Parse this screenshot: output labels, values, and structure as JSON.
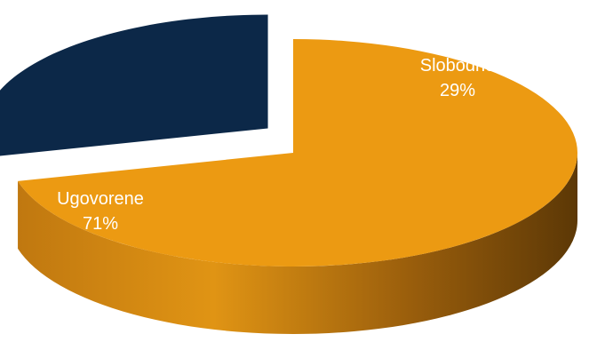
{
  "chart_data": {
    "type": "pie",
    "title": "",
    "slices": [
      {
        "label": "Ugovorene",
        "value": 71,
        "percent_label": "71%",
        "color": "#EC9A12"
      },
      {
        "label": "Slobodne",
        "value": 29,
        "percent_label": "29%",
        "color": "#0C2848"
      }
    ],
    "exploded": "Slobodne",
    "style": "3d",
    "legend": "none"
  }
}
